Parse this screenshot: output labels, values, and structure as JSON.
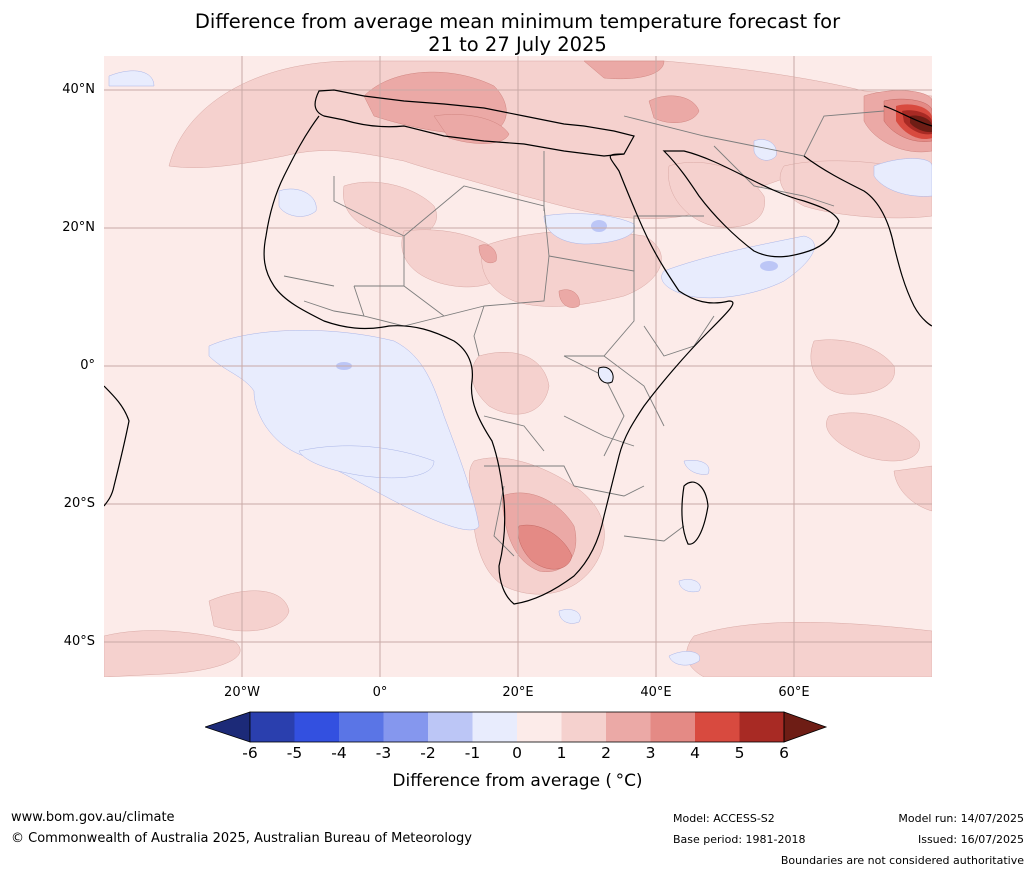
{
  "title": {
    "line1": "Difference from average mean minimum temperature forecast for",
    "line2": "21 to 27 July 2025"
  },
  "map": {
    "type": "filled-contour-map",
    "region": "Africa, Middle East and adjacent oceans",
    "lon_range": [
      -40,
      80
    ],
    "lat_range": [
      -45,
      45
    ],
    "lat_ticks": [
      "40°N",
      "20°N",
      "0°",
      "20°S",
      "40°S"
    ],
    "lon_ticks": [
      "20°W",
      "0°",
      "20°E",
      "40°E",
      "60°E"
    ],
    "gridlines": true,
    "features": [
      {
        "name": "warm anomaly Tibetan Plateau",
        "value": "5 to 6+"
      },
      {
        "name": "warm anomaly southern Africa interior",
        "value": "2 to 4"
      },
      {
        "name": "warm anomaly Mediterranean / North Africa",
        "value": "1 to 3"
      },
      {
        "name": "cool anomaly Gulf of Guinea / South Atlantic",
        "value": "-1 to 0"
      },
      {
        "name": "cool anomaly Arabian Sea",
        "value": "-1 to 0"
      }
    ]
  },
  "colorbar": {
    "ticks": [
      "-6",
      "-5",
      "-4",
      "-3",
      "-2",
      "-1",
      "0",
      "1",
      "2",
      "3",
      "4",
      "5",
      "6"
    ],
    "colors": [
      "#2a3fae",
      "#3350e0",
      "#5a75e6",
      "#8597ee",
      "#bcc6f6",
      "#e8ecfd",
      "#fcebe9",
      "#f5d1ce",
      "#eba9a6",
      "#e48a85",
      "#d84a3f",
      "#a82a24"
    ],
    "under_color": "#1c2a78",
    "over_color": "#6e1d15",
    "label": "Difference from average ($^\\circ$C)",
    "label_text": "Difference from average (",
    "label_unit": "°C)"
  },
  "footer": {
    "url": "www.bom.gov.au/climate",
    "copyright": "© Commonwealth of Australia 2025, Australian Bureau of Meteorology",
    "model": "Model: ACCESS-S2",
    "base_period": "Base period: 1981-2018",
    "model_run": "Model run: 14/07/2025",
    "issued": "Issued: 16/07/2025",
    "disclaimer": "Boundaries are not considered authoritative"
  }
}
